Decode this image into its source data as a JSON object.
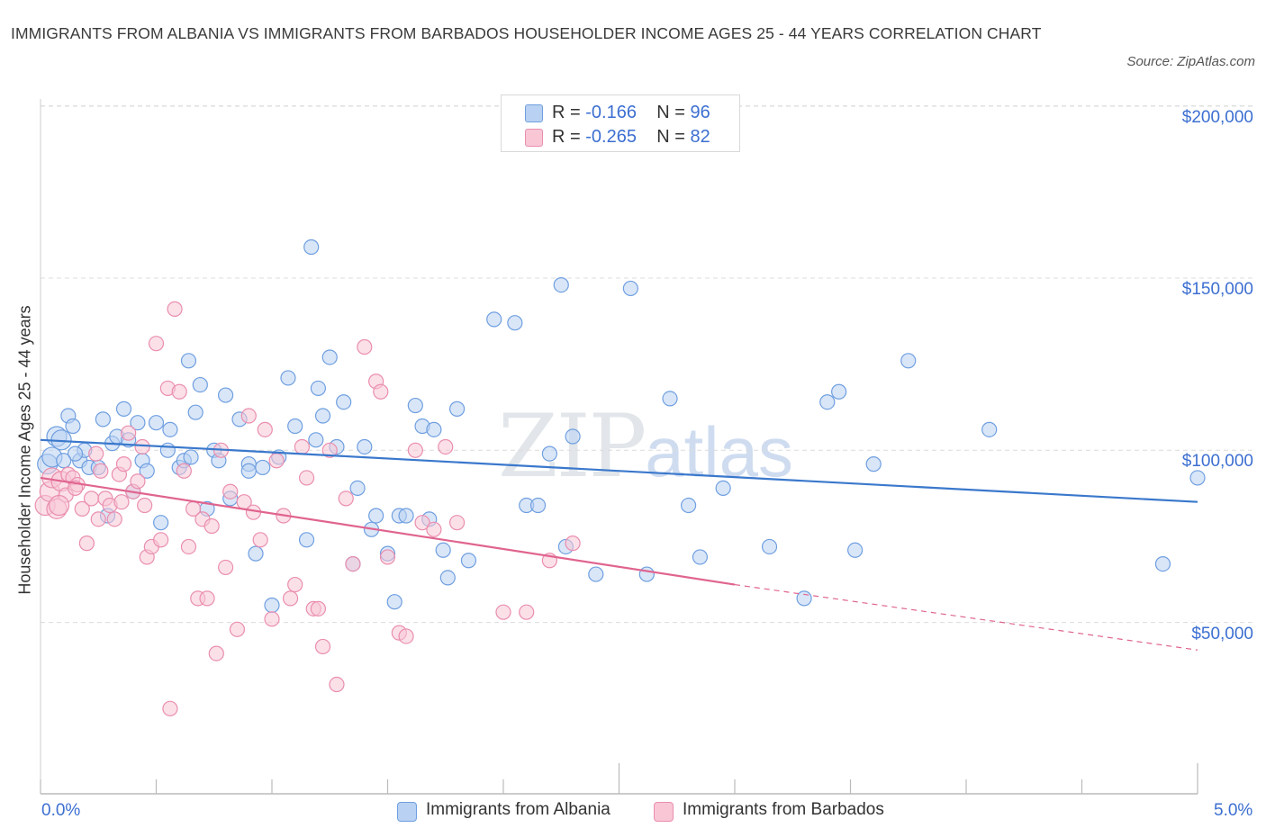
{
  "header": {
    "title": "IMMIGRANTS FROM ALBANIA VS IMMIGRANTS FROM BARBADOS HOUSEHOLDER INCOME AGES 25 - 44 YEARS CORRELATION CHART",
    "source": "Source: ZipAtlas.com"
  },
  "watermark": {
    "zip": "ZIP",
    "atlas": "atlas"
  },
  "legend": {
    "rows": [
      {
        "r_label": "R = ",
        "r_value": "-0.166",
        "n_label": "N = ",
        "n_value": "96",
        "color": "#a9c7ef"
      },
      {
        "r_label": "R = ",
        "r_value": "-0.265",
        "n_label": "N = ",
        "n_value": "82",
        "color": "#f5b8cb"
      }
    ]
  },
  "colors": {
    "albania_fill": "#b9d1f2",
    "albania_stroke": "#6f9fe0",
    "albania_line": "#3a78cc",
    "barbados_fill": "#f8c6d5",
    "barbados_stroke": "#ea8eae",
    "barbados_line": "#e0648f",
    "grid": "#dcdcdc",
    "tick_text": "#3c6fd1"
  },
  "chart_data": {
    "type": "scatter",
    "title": "IMMIGRANTS FROM ALBANIA VS IMMIGRANTS FROM BARBADOS HOUSEHOLDER INCOME AGES 25 - 44 YEARS CORRELATION CHART",
    "xlabel": "",
    "ylabel": "Householder Income Ages 25 - 44 years",
    "xlim": [
      0,
      5
    ],
    "ylim": [
      0,
      210000
    ],
    "x_ticks": [
      "0.0%",
      "5.0%"
    ],
    "y_ticks": [
      {
        "value": 50000,
        "label": "$50,000"
      },
      {
        "value": 100000,
        "label": "$100,000"
      },
      {
        "value": 150000,
        "label": "$150,000"
      },
      {
        "value": 200000,
        "label": "$200,000"
      }
    ],
    "grid": true,
    "legend_position": "bottom-center",
    "series": [
      {
        "name": "Immigrants from Albania",
        "r": -0.166,
        "n": 96,
        "trend": {
          "x": [
            0.0,
            5.0
          ],
          "y": [
            103000,
            85000
          ]
        },
        "points": [
          [
            0.03,
            96000
          ],
          [
            0.05,
            98000
          ],
          [
            0.07,
            104000
          ],
          [
            0.09,
            103000
          ],
          [
            0.12,
            110000
          ],
          [
            0.14,
            107000
          ],
          [
            0.17,
            97000
          ],
          [
            0.19,
            100000
          ],
          [
            0.21,
            95000
          ],
          [
            0.27,
            109000
          ],
          [
            0.29,
            81000
          ],
          [
            0.31,
            102000
          ],
          [
            0.33,
            104000
          ],
          [
            0.36,
            112000
          ],
          [
            0.4,
            88000
          ],
          [
            0.42,
            108000
          ],
          [
            0.44,
            97000
          ],
          [
            0.46,
            94000
          ],
          [
            0.5,
            108000
          ],
          [
            0.52,
            79000
          ],
          [
            0.56,
            106000
          ],
          [
            0.6,
            95000
          ],
          [
            0.62,
            97000
          ],
          [
            0.64,
            126000
          ],
          [
            0.67,
            111000
          ],
          [
            0.69,
            119000
          ],
          [
            0.72,
            83000
          ],
          [
            0.75,
            100000
          ],
          [
            0.77,
            97000
          ],
          [
            0.8,
            116000
          ],
          [
            0.82,
            86000
          ],
          [
            0.86,
            109000
          ],
          [
            0.9,
            96000
          ],
          [
            0.93,
            70000
          ],
          [
            0.96,
            95000
          ],
          [
            1.0,
            55000
          ],
          [
            1.03,
            98000
          ],
          [
            1.07,
            121000
          ],
          [
            1.1,
            107000
          ],
          [
            1.15,
            74000
          ],
          [
            1.17,
            159000
          ],
          [
            1.19,
            103000
          ],
          [
            1.2,
            118000
          ],
          [
            1.25,
            127000
          ],
          [
            1.28,
            101000
          ],
          [
            1.31,
            114000
          ],
          [
            1.35,
            67000
          ],
          [
            1.37,
            89000
          ],
          [
            1.4,
            101000
          ],
          [
            1.43,
            77000
          ],
          [
            1.45,
            81000
          ],
          [
            1.5,
            70000
          ],
          [
            1.53,
            56000
          ],
          [
            1.55,
            81000
          ],
          [
            1.58,
            81000
          ],
          [
            1.62,
            113000
          ],
          [
            1.65,
            107000
          ],
          [
            1.68,
            80000
          ],
          [
            1.7,
            106000
          ],
          [
            1.74,
            71000
          ],
          [
            1.76,
            63000
          ],
          [
            1.8,
            112000
          ],
          [
            1.85,
            68000
          ],
          [
            1.96,
            138000
          ],
          [
            2.05,
            137000
          ],
          [
            2.1,
            84000
          ],
          [
            2.15,
            84000
          ],
          [
            2.2,
            99000
          ],
          [
            2.25,
            148000
          ],
          [
            2.27,
            72000
          ],
          [
            2.3,
            104000
          ],
          [
            2.4,
            64000
          ],
          [
            2.55,
            147000
          ],
          [
            2.62,
            64000
          ],
          [
            2.72,
            115000
          ],
          [
            2.8,
            84000
          ],
          [
            2.85,
            69000
          ],
          [
            2.95,
            89000
          ],
          [
            3.15,
            72000
          ],
          [
            3.3,
            57000
          ],
          [
            3.4,
            114000
          ],
          [
            3.45,
            117000
          ],
          [
            3.52,
            71000
          ],
          [
            3.6,
            96000
          ],
          [
            3.75,
            126000
          ],
          [
            4.1,
            106000
          ],
          [
            4.85,
            67000
          ],
          [
            5.0,
            92000
          ],
          [
            0.15,
            99000
          ],
          [
            0.25,
            95000
          ],
          [
            0.38,
            103000
          ],
          [
            0.65,
            98000
          ],
          [
            0.9,
            94000
          ],
          [
            1.22,
            110000
          ],
          [
            0.1,
            97000
          ],
          [
            0.55,
            100000
          ]
        ]
      },
      {
        "name": "Immigrants from Barbados",
        "r": -0.265,
        "n": 82,
        "trend": {
          "x": [
            0.0,
            3.0
          ],
          "y": [
            92000,
            61000
          ]
        },
        "trend_dashed": {
          "x": [
            3.0,
            5.0
          ],
          "y": [
            61000,
            42000
          ]
        },
        "points": [
          [
            0.02,
            84000
          ],
          [
            0.04,
            88000
          ],
          [
            0.05,
            92000
          ],
          [
            0.07,
            83000
          ],
          [
            0.09,
            91000
          ],
          [
            0.11,
            87000
          ],
          [
            0.12,
            93000
          ],
          [
            0.14,
            92000
          ],
          [
            0.16,
            90000
          ],
          [
            0.18,
            83000
          ],
          [
            0.2,
            73000
          ],
          [
            0.22,
            86000
          ],
          [
            0.24,
            99000
          ],
          [
            0.26,
            94000
          ],
          [
            0.28,
            86000
          ],
          [
            0.3,
            84000
          ],
          [
            0.32,
            80000
          ],
          [
            0.34,
            93000
          ],
          [
            0.36,
            96000
          ],
          [
            0.38,
            105000
          ],
          [
            0.4,
            88000
          ],
          [
            0.42,
            91000
          ],
          [
            0.44,
            101000
          ],
          [
            0.46,
            69000
          ],
          [
            0.48,
            72000
          ],
          [
            0.5,
            131000
          ],
          [
            0.52,
            74000
          ],
          [
            0.55,
            118000
          ],
          [
            0.56,
            25000
          ],
          [
            0.58,
            141000
          ],
          [
            0.6,
            117000
          ],
          [
            0.62,
            94000
          ],
          [
            0.64,
            72000
          ],
          [
            0.66,
            83000
          ],
          [
            0.68,
            57000
          ],
          [
            0.7,
            80000
          ],
          [
            0.72,
            57000
          ],
          [
            0.74,
            78000
          ],
          [
            0.76,
            41000
          ],
          [
            0.78,
            100000
          ],
          [
            0.8,
            66000
          ],
          [
            0.82,
            88000
          ],
          [
            0.85,
            48000
          ],
          [
            0.88,
            85000
          ],
          [
            0.9,
            110000
          ],
          [
            0.92,
            82000
          ],
          [
            0.95,
            74000
          ],
          [
            0.97,
            106000
          ],
          [
            1.0,
            51000
          ],
          [
            1.02,
            97000
          ],
          [
            1.05,
            81000
          ],
          [
            1.08,
            57000
          ],
          [
            1.1,
            61000
          ],
          [
            1.13,
            101000
          ],
          [
            1.15,
            92000
          ],
          [
            1.18,
            54000
          ],
          [
            1.2,
            54000
          ],
          [
            1.22,
            43000
          ],
          [
            1.25,
            100000
          ],
          [
            1.28,
            32000
          ],
          [
            1.32,
            86000
          ],
          [
            1.35,
            67000
          ],
          [
            1.4,
            130000
          ],
          [
            1.45,
            120000
          ],
          [
            1.47,
            117000
          ],
          [
            1.5,
            69000
          ],
          [
            1.55,
            47000
          ],
          [
            1.58,
            46000
          ],
          [
            1.62,
            100000
          ],
          [
            1.65,
            79000
          ],
          [
            1.7,
            77000
          ],
          [
            1.75,
            101000
          ],
          [
            1.8,
            79000
          ],
          [
            2.0,
            53000
          ],
          [
            2.1,
            53000
          ],
          [
            2.2,
            68000
          ],
          [
            2.3,
            73000
          ],
          [
            0.08,
            84000
          ],
          [
            0.15,
            89000
          ],
          [
            0.35,
            85000
          ],
          [
            0.45,
            84000
          ],
          [
            0.25,
            80000
          ]
        ]
      }
    ]
  },
  "bottom_legend": {
    "albania": "Immigrants from Albania",
    "barbados": "Immigrants from Barbados"
  }
}
